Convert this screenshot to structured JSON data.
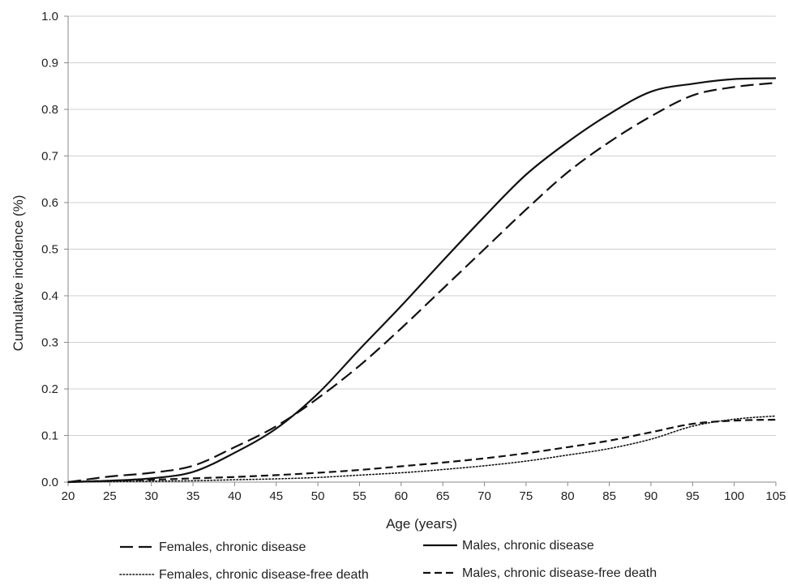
{
  "chart_data": {
    "type": "line",
    "title": "",
    "xlabel": "Age (years)",
    "ylabel": "Cumulative incidence (%)",
    "xlim": [
      20,
      105
    ],
    "ylim": [
      0,
      1.0
    ],
    "x_ticks": [
      "20",
      "25",
      "30",
      "35",
      "40",
      "45",
      "50",
      "55",
      "60",
      "65",
      "70",
      "75",
      "80",
      "85",
      "90",
      "95",
      "100",
      "105"
    ],
    "y_ticks": [
      "0.0",
      "0.1",
      "0.2",
      "0.3",
      "0.4",
      "0.5",
      "0.6",
      "0.7",
      "0.8",
      "0.9",
      "1.0"
    ],
    "grid": "horizontal",
    "legend_position": "bottom",
    "x": [
      20,
      25,
      30,
      35,
      40,
      45,
      50,
      55,
      60,
      65,
      70,
      75,
      80,
      85,
      90,
      95,
      100,
      105
    ],
    "series": [
      {
        "name": "Females, chronic disease",
        "style": "long-dash",
        "color": "#111111",
        "values": [
          0.0,
          0.012,
          0.02,
          0.035,
          0.075,
          0.12,
          0.18,
          0.25,
          0.33,
          0.415,
          0.5,
          0.585,
          0.665,
          0.73,
          0.785,
          0.83,
          0.848,
          0.857
        ]
      },
      {
        "name": "Males, chronic disease",
        "style": "solid",
        "color": "#111111",
        "values": [
          0.0,
          0.003,
          0.008,
          0.022,
          0.063,
          0.115,
          0.19,
          0.285,
          0.378,
          0.475,
          0.57,
          0.66,
          0.73,
          0.79,
          0.838,
          0.855,
          0.865,
          0.867
        ]
      },
      {
        "name": "Females, chronic disease-free death",
        "style": "dotted",
        "color": "#111111",
        "values": [
          0.0,
          0.001,
          0.002,
          0.003,
          0.005,
          0.007,
          0.01,
          0.015,
          0.02,
          0.027,
          0.035,
          0.045,
          0.058,
          0.072,
          0.092,
          0.12,
          0.135,
          0.142
        ]
      },
      {
        "name": "Males, chronic disease-free death",
        "style": "short-dash",
        "color": "#111111",
        "values": [
          0.0,
          0.003,
          0.005,
          0.008,
          0.011,
          0.015,
          0.02,
          0.026,
          0.034,
          0.042,
          0.051,
          0.062,
          0.075,
          0.089,
          0.107,
          0.125,
          0.132,
          0.134
        ]
      }
    ]
  }
}
